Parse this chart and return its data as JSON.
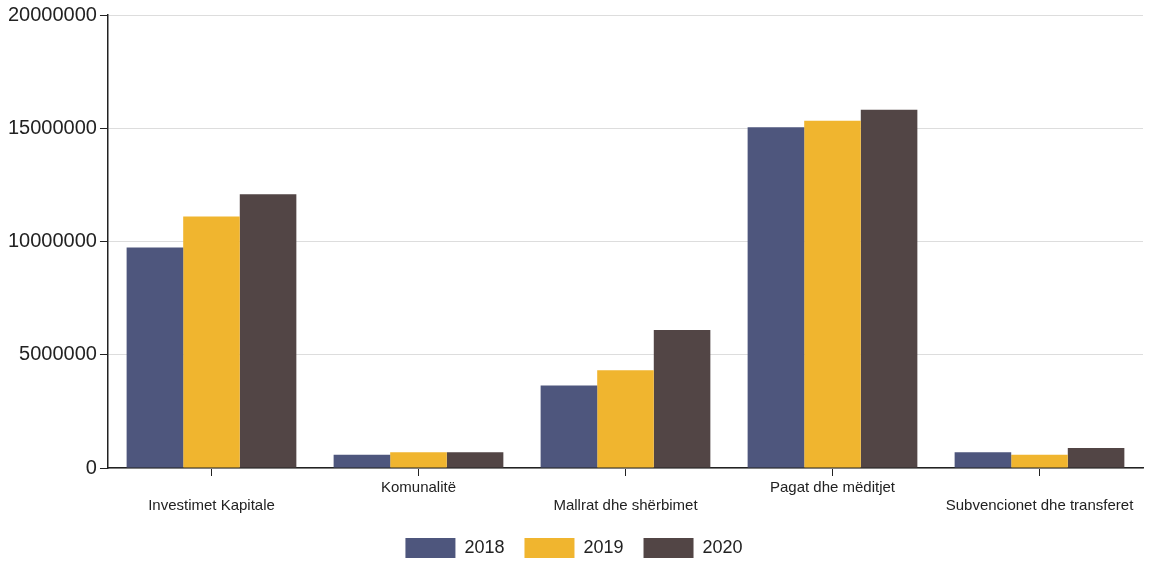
{
  "chart_data": {
    "type": "bar",
    "categories": [
      "Investimet Kapitale",
      "Komunalitë",
      "Mallrat dhe shërbimet",
      "Pagat dhe mëditjet",
      "Subvencionet dhe transferet"
    ],
    "series": [
      {
        "name": "2018",
        "color": "#4e567d",
        "values": [
          9730000,
          590000,
          3640000,
          15040000,
          690000
        ]
      },
      {
        "name": "2019",
        "color": "#f0b52f",
        "values": [
          11100000,
          690000,
          4320000,
          15330000,
          590000
        ]
      },
      {
        "name": "2020",
        "color": "#524545",
        "values": [
          12090000,
          690000,
          6090000,
          15820000,
          880000
        ]
      }
    ],
    "ylim": [
      0,
      20000000
    ],
    "yticks": [
      0,
      5000000,
      10000000,
      15000000,
      20000000
    ],
    "grid": "y",
    "legend": "bottom"
  }
}
